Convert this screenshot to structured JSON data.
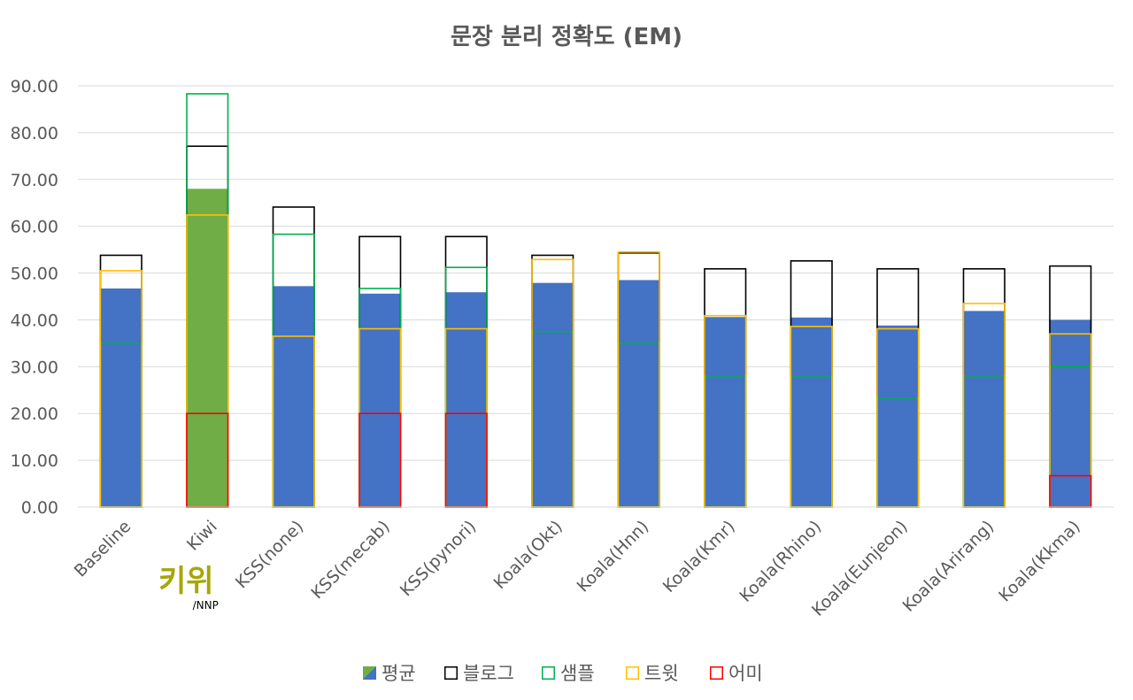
{
  "chart_data": {
    "type": "bar",
    "title": "문장 분리 정확도 (EM)",
    "xlabel": "",
    "ylabel": "",
    "ylim": [
      0,
      90
    ],
    "y_ticks": [
      "0.00",
      "10.00",
      "20.00",
      "30.00",
      "40.00",
      "50.00",
      "60.00",
      "70.00",
      "80.00",
      "90.00"
    ],
    "grid": true,
    "legend_position": "bottom",
    "categories": [
      "Baseline",
      "Kiwi",
      "KSS(none)",
      "KSS(mecab)",
      "KSS(pynori)",
      "Koala(Okt)",
      "Koala(Hnn)",
      "Koala(Kmr)",
      "Koala(Rhino)",
      "Koala(Eunjeon)",
      "Koala(Arirang)",
      "Koala(Kkma)"
    ],
    "highlight_category": "Kiwi",
    "series": [
      {
        "name": "평균",
        "style": "filled",
        "color": "#4472c4",
        "highlight_color": "#70ad47",
        "values": [
          46.7,
          68.0,
          47.2,
          45.6,
          45.9,
          47.9,
          48.5,
          40.6,
          40.5,
          38.8,
          41.9,
          40.0
        ]
      },
      {
        "name": "블로그",
        "style": "outline",
        "color": "#000000",
        "values": [
          53.8,
          77.1,
          64.1,
          57.8,
          57.8,
          53.8,
          54.3,
          50.9,
          52.6,
          50.9,
          50.9,
          51.5
        ]
      },
      {
        "name": "샘플",
        "style": "outline",
        "color": "#00b050",
        "values": [
          35.0,
          88.3,
          58.3,
          46.7,
          51.2,
          37.5,
          35.0,
          28.0,
          28.0,
          23.3,
          28.0,
          30.0
        ]
      },
      {
        "name": "트윗",
        "style": "outline",
        "color": "#ffc000",
        "values": [
          50.5,
          62.4,
          36.5,
          38.1,
          38.1,
          52.9,
          54.5,
          40.9,
          38.6,
          38.1,
          43.5,
          37.0
        ]
      },
      {
        "name": "어미",
        "style": "outline",
        "color": "#ff0000",
        "values": [
          0,
          20.0,
          0,
          20.0,
          20.0,
          0,
          0,
          0,
          0,
          0,
          0,
          6.7
        ]
      }
    ],
    "logo": {
      "text": "키위",
      "subtext": "/NNP",
      "color": "#a6a60a"
    }
  }
}
